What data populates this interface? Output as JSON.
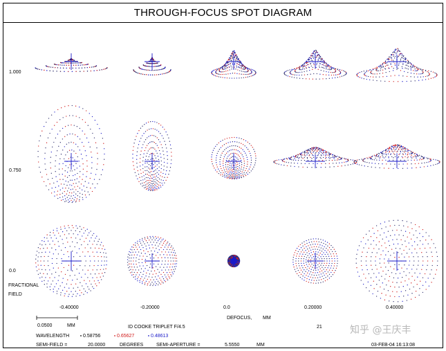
{
  "title": "THROUGH-FOCUS SPOT DIAGRAM",
  "field_labels": [
    "1.000",
    "0.750",
    "0.0"
  ],
  "field_axis_label": [
    "FRACTIONAL",
    "FIELD"
  ],
  "defocus_values": [
    "-0.40000",
    "-0.20000",
    "0.0",
    "0.20000",
    "0.40000"
  ],
  "defocus_label": "DEFOCUS,",
  "defocus_unit": "MM",
  "scale_bar": {
    "value": "0.0500",
    "unit": "MM"
  },
  "lens_name": "ID COOKE TRIPLET F/4.5",
  "surface_count": "21",
  "wavelength_label": "WAVELENGTH",
  "wavelengths": [
    {
      "value": "0.58756",
      "color": "#000000"
    },
    {
      "value": "0.65627",
      "color": "#d01818"
    },
    {
      "value": "0.48613",
      "color": "#1a1ac8"
    }
  ],
  "semi_field_label": "SEMI-FIELD =",
  "semi_field_value": "20.0000",
  "semi_field_unit": "DEGREES",
  "semi_aperture_label": "SEMI-APERTURE =",
  "semi_aperture_value": "5.5550",
  "semi_aperture_unit": "MM",
  "date_time": "03-FEB-04  16:13:08",
  "watermark": "知乎 @王庆丰",
  "colors": {
    "primary_ray": "#1a1ac8",
    "secondary_ray": "#d01818",
    "dot": "#2a2a6a"
  }
}
